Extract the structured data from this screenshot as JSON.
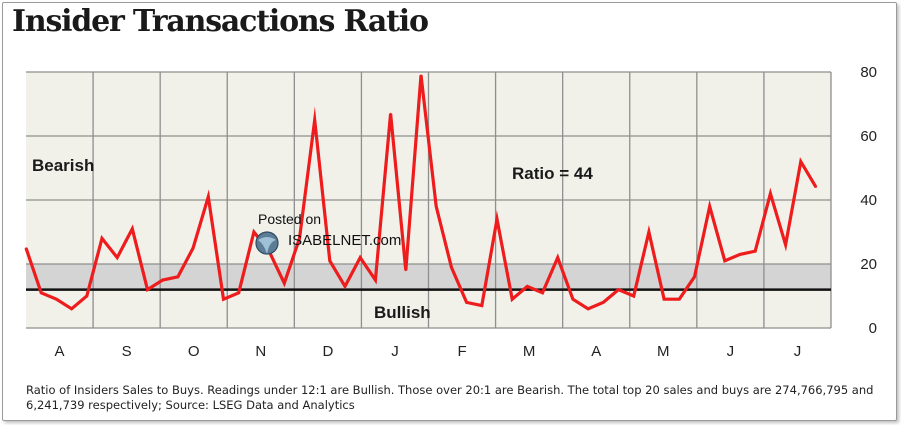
{
  "chart_data": {
    "type": "line",
    "title": "Insider Transactions Ratio",
    "x_labels": [
      "A",
      "S",
      "O",
      "N",
      "D",
      "J",
      "F",
      "M",
      "A",
      "M",
      "J",
      "J"
    ],
    "series": [
      {
        "values": [
          25,
          11,
          9,
          6,
          10,
          28,
          22,
          31,
          12,
          15,
          16,
          25,
          41,
          9,
          11,
          30,
          24,
          14,
          28,
          65,
          21,
          13,
          22,
          15,
          67,
          18,
          79,
          38,
          19,
          8,
          7,
          34,
          9,
          13,
          11,
          22,
          9,
          6,
          8,
          12,
          10,
          30,
          9,
          9,
          16,
          38,
          21,
          23,
          24,
          42,
          26,
          52,
          44
        ]
      }
    ],
    "y_ticks": [
      0,
      20,
      40,
      60,
      80
    ],
    "ylim": [
      0,
      80
    ],
    "bullish_threshold": 12,
    "bearish_threshold": 20,
    "annotations": {
      "bearish": "Bearish",
      "bullish": "Bullish",
      "ratio": "Ratio = 44"
    },
    "colors": {
      "line": "#ee1c1c",
      "plot_bg": "#f1f1ea",
      "band": "#d4d4d4",
      "grid": "#8e8e8e",
      "threshold": "#111111"
    },
    "grid": true,
    "footnote": "Ratio of Insiders Sales to Buys. Readings under 12:1 are Bullish. Those over 20:1 are Bearish. The total top 20 sales and buys are 274,766,795 and 6,241,739 respectively; Source: LSEG Data and Analytics"
  },
  "watermark": {
    "line1": "Posted on",
    "line2": "ISABELNET.com",
    "icon": "isabelnet-globe-icon"
  }
}
